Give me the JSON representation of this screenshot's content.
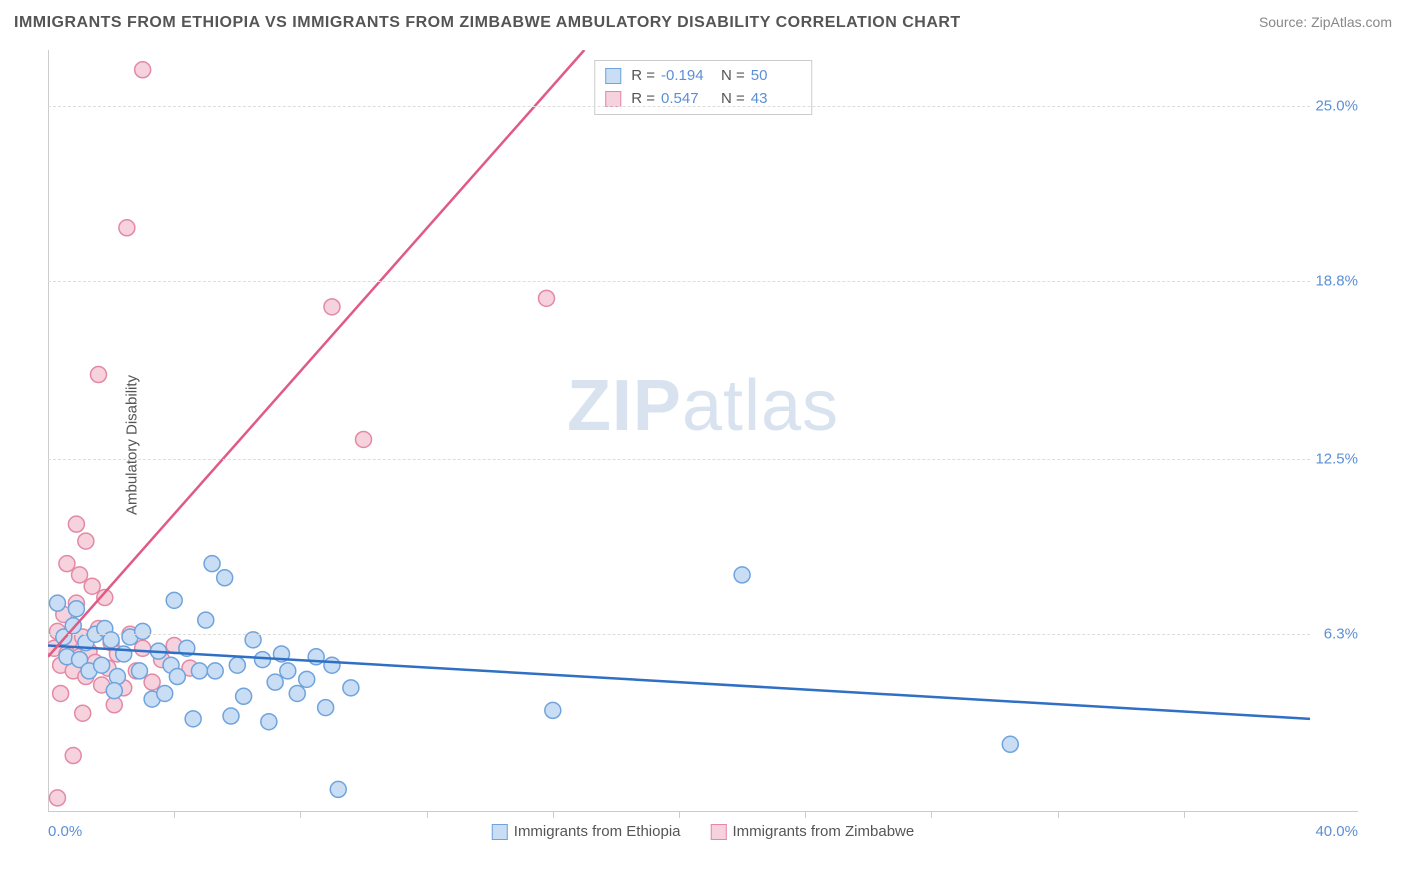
{
  "header": {
    "title": "IMMIGRANTS FROM ETHIOPIA VS IMMIGRANTS FROM ZIMBABWE AMBULATORY DISABILITY CORRELATION CHART",
    "source": "Source: ZipAtlas.com"
  },
  "chart": {
    "type": "scatter",
    "ylabel": "Ambulatory Disability",
    "xlim_min_label": "0.0%",
    "xlim_max_label": "40.0%",
    "xlim": [
      0,
      40
    ],
    "ylim": [
      0,
      27
    ],
    "ytick_labels": [
      "6.3%",
      "12.5%",
      "18.8%",
      "25.0%"
    ],
    "ytick_values": [
      6.3,
      12.5,
      18.8,
      25.0
    ],
    "xtick_values": [
      4,
      8,
      12,
      16,
      20,
      24,
      28,
      32,
      36
    ],
    "background_color": "#ffffff",
    "grid_color": "#dddddd",
    "axis_text_color": "#5b8fd6",
    "marker_radius": 8,
    "marker_stroke_width": 1.5,
    "line_width": 2.5,
    "watermark": "ZIPatlas",
    "series": [
      {
        "key": "ethiopia",
        "label": "Immigrants from Ethiopia",
        "color_fill": "#c9ddf5",
        "color_stroke": "#6fa3dd",
        "line_color": "#2f6fc4",
        "R": "-0.194",
        "N": "50",
        "trend": {
          "x1": 0,
          "y1": 5.9,
          "x2": 40,
          "y2": 3.3
        },
        "points": [
          [
            0.3,
            7.4
          ],
          [
            0.5,
            6.2
          ],
          [
            0.6,
            5.5
          ],
          [
            0.8,
            6.6
          ],
          [
            0.9,
            7.2
          ],
          [
            1.0,
            5.4
          ],
          [
            1.2,
            6.0
          ],
          [
            1.3,
            5.0
          ],
          [
            1.5,
            6.3
          ],
          [
            1.7,
            5.2
          ],
          [
            1.8,
            6.5
          ],
          [
            2.0,
            6.1
          ],
          [
            2.2,
            4.8
          ],
          [
            2.4,
            5.6
          ],
          [
            2.6,
            6.2
          ],
          [
            2.9,
            5.0
          ],
          [
            3.0,
            6.4
          ],
          [
            3.3,
            4.0
          ],
          [
            3.5,
            5.7
          ],
          [
            3.7,
            4.2
          ],
          [
            3.9,
            5.2
          ],
          [
            4.1,
            4.8
          ],
          [
            4.4,
            5.8
          ],
          [
            4.6,
            3.3
          ],
          [
            4.8,
            5.0
          ],
          [
            5.0,
            6.8
          ],
          [
            5.3,
            5.0
          ],
          [
            5.6,
            8.3
          ],
          [
            5.8,
            3.4
          ],
          [
            6.0,
            5.2
          ],
          [
            6.2,
            4.1
          ],
          [
            6.5,
            6.1
          ],
          [
            6.8,
            5.4
          ],
          [
            7.0,
            3.2
          ],
          [
            7.2,
            4.6
          ],
          [
            7.4,
            5.6
          ],
          [
            7.6,
            5.0
          ],
          [
            7.9,
            4.2
          ],
          [
            8.2,
            4.7
          ],
          [
            8.5,
            5.5
          ],
          [
            8.8,
            3.7
          ],
          [
            9.0,
            5.2
          ],
          [
            9.6,
            4.4
          ],
          [
            9.2,
            0.8
          ],
          [
            16.0,
            3.6
          ],
          [
            22.0,
            8.4
          ],
          [
            30.5,
            2.4
          ],
          [
            5.2,
            8.8
          ],
          [
            4.0,
            7.5
          ],
          [
            2.1,
            4.3
          ]
        ]
      },
      {
        "key": "zimbabwe",
        "label": "Immigrants from Zimbabwe",
        "color_fill": "#f5d2dd",
        "color_stroke": "#e389a3",
        "line_color": "#e05a85",
        "R": "0.547",
        "N": "43",
        "trend": {
          "x1": 0,
          "y1": 5.5,
          "x2": 17,
          "y2": 27
        },
        "points": [
          [
            0.2,
            5.8
          ],
          [
            0.3,
            6.4
          ],
          [
            0.4,
            5.2
          ],
          [
            0.5,
            7.0
          ],
          [
            0.6,
            5.6
          ],
          [
            0.7,
            6.1
          ],
          [
            0.8,
            5.0
          ],
          [
            0.9,
            7.4
          ],
          [
            1.0,
            5.5
          ],
          [
            1.1,
            6.2
          ],
          [
            1.2,
            4.8
          ],
          [
            1.3,
            5.7
          ],
          [
            1.4,
            8.0
          ],
          [
            1.5,
            5.3
          ],
          [
            1.6,
            6.5
          ],
          [
            1.7,
            4.5
          ],
          [
            1.8,
            7.6
          ],
          [
            1.9,
            5.1
          ],
          [
            2.0,
            6.0
          ],
          [
            2.1,
            3.8
          ],
          [
            2.2,
            5.6
          ],
          [
            2.4,
            4.4
          ],
          [
            2.6,
            6.3
          ],
          [
            2.8,
            5.0
          ],
          [
            3.0,
            5.8
          ],
          [
            3.3,
            4.6
          ],
          [
            3.6,
            5.4
          ],
          [
            4.0,
            5.9
          ],
          [
            4.5,
            5.1
          ],
          [
            0.8,
            2.0
          ],
          [
            0.3,
            0.5
          ],
          [
            1.2,
            9.6
          ],
          [
            1.6,
            15.5
          ],
          [
            2.5,
            20.7
          ],
          [
            3.0,
            26.3
          ],
          [
            9.0,
            17.9
          ],
          [
            10.0,
            13.2
          ],
          [
            15.8,
            18.2
          ],
          [
            1.0,
            8.4
          ],
          [
            0.6,
            8.8
          ],
          [
            0.4,
            4.2
          ],
          [
            1.1,
            3.5
          ],
          [
            0.9,
            10.2
          ]
        ]
      }
    ]
  }
}
